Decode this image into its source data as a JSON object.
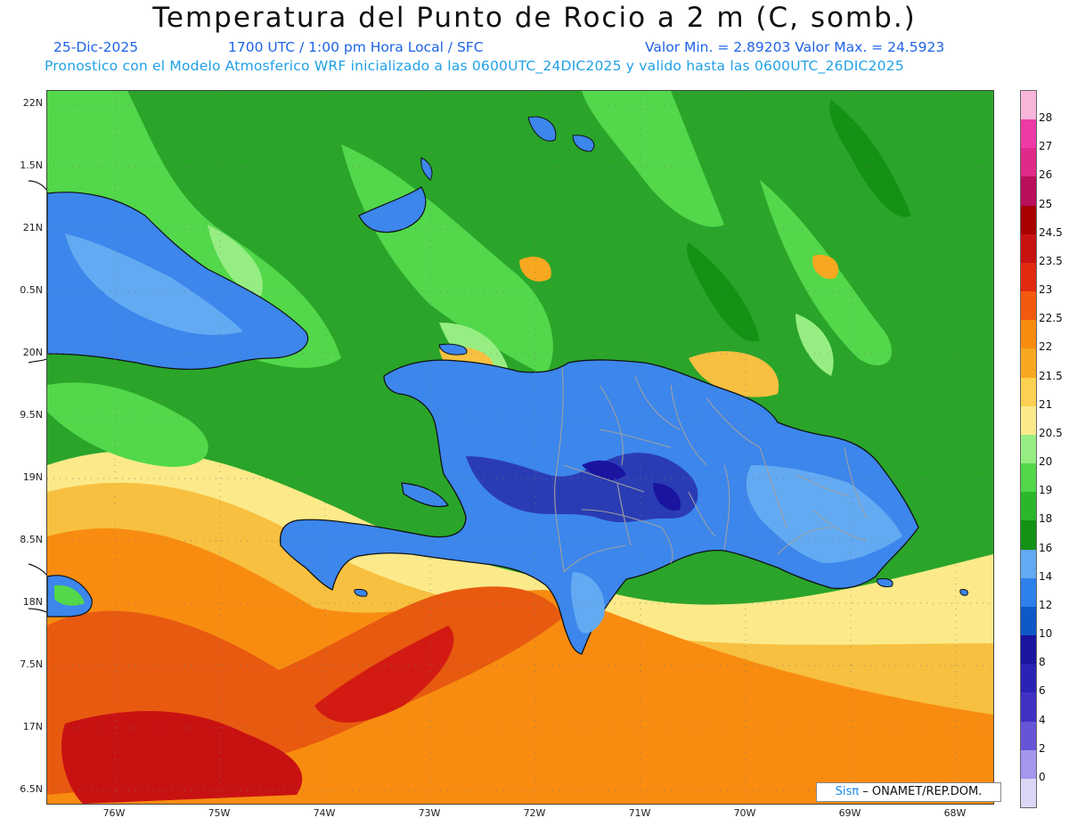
{
  "title": "Temperatura del Punto de Rocio a 2 m (C, somb.)",
  "subtitle": {
    "date": "25-Dic-2025",
    "time": "1700 UTC / 1:00 pm Hora Local / SFC",
    "min_max": "Valor Min. = 2.89203  Valor Max. = 24.5923",
    "model": "Pronostico con el Modelo Atmosferico WRF inicializado a las 0600UTC_24DIC2025 y valido hasta las  0600UTC_26DIC2025"
  },
  "axes": {
    "lat_labels": [
      "22N",
      "1.5N",
      "21N",
      "0.5N",
      "20N",
      "9.5N",
      "19N",
      "8.5N",
      "18N",
      "7.5N",
      "17N",
      "6.5N"
    ],
    "lon_labels": [
      "76W",
      "75W",
      "74W",
      "73W",
      "72W",
      "71W",
      "70W",
      "69W",
      "68W"
    ]
  },
  "colorbar": {
    "labels": [
      "28",
      "27",
      "26",
      "25",
      "24.5",
      "23.5",
      "23",
      "22.5",
      "22",
      "21.5",
      "21",
      "20.5",
      "20",
      "19",
      "18",
      "16",
      "14",
      "12",
      "10",
      "8",
      "6",
      "4",
      "2",
      "0"
    ],
    "colors": [
      "#f7b6da",
      "#ee3aa6",
      "#e02a8a",
      "#b8105a",
      "#a80000",
      "#c81212",
      "#e22a10",
      "#f25a10",
      "#f88c10",
      "#f8a820",
      "#fcd050",
      "#fcea8a",
      "#96ee82",
      "#52d84a",
      "#2ab82a",
      "#139213",
      "#62aaf2",
      "#2e80ea",
      "#0e58c8",
      "#1a14a0",
      "#2a22b4",
      "#4032c4",
      "#6656d6",
      "#a696ee",
      "#dad8f6"
    ]
  },
  "credit": {
    "sis": "Sisπ",
    "org": "– ONAMET/REP.DOM."
  },
  "map_colors": {
    "sea_base": "#2aa52a",
    "dark_green": "#139213",
    "light_green": "#52d84a",
    "pale_green": "#96ee82",
    "yellow": "#fcea8a",
    "gold": "#f8c040",
    "orange": "#f88c10",
    "red_orange": "#e85a10",
    "red": "#c81212",
    "land_blue": "#3c86ec",
    "dark_blue": "#2a3cb4",
    "light_blue": "#62aaf2",
    "border_gray": "#a0a0a0"
  }
}
